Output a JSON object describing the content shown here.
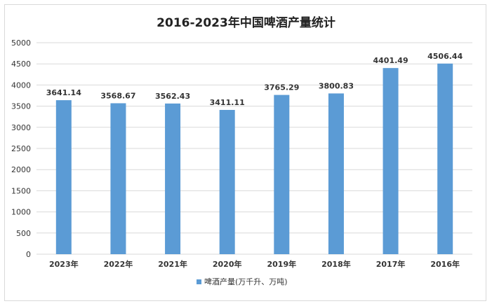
{
  "chart_data": {
    "type": "bar",
    "title": "2016-2023年中国啤酒产量统计",
    "categories": [
      "2023年",
      "2022年",
      "2021年",
      "2020年",
      "2019年",
      "2018年",
      "2017年",
      "2016年"
    ],
    "series": [
      {
        "name": "啤酒产量(万千升、万吨)",
        "values": [
          3641.14,
          3568.67,
          3562.43,
          3411.11,
          3765.29,
          3800.83,
          4401.49,
          4506.44
        ],
        "color": "#5b9bd5"
      }
    ],
    "data_labels": [
      "3641.14",
      "3568.67",
      "3562.43",
      "3411.11",
      "3765.29",
      "3800.83",
      "4401.49",
      "4506.44"
    ],
    "ylim": [
      0,
      5000
    ],
    "yticks": [
      "0",
      "500",
      "1000",
      "1500",
      "2000",
      "2500",
      "3000",
      "3500",
      "4000",
      "4500",
      "5000"
    ],
    "grid": true,
    "legend_position": "bottom",
    "gridline_color": "#d9d9d9"
  }
}
